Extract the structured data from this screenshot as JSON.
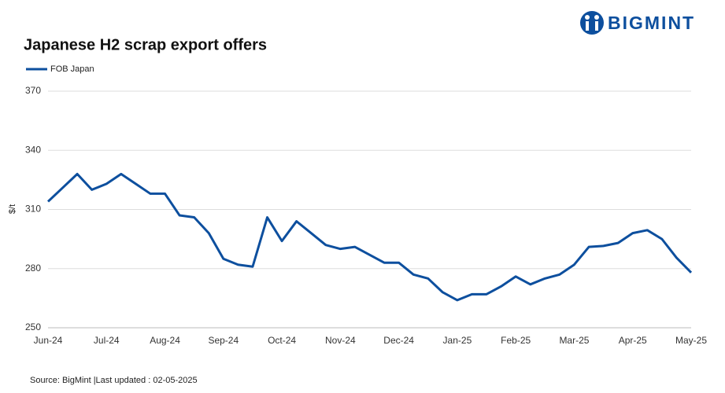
{
  "chart_data": {
    "type": "line",
    "title": "Japanese H2 scrap export offers",
    "brand": "BIGMINT",
    "ylabel": "$/t",
    "source": "Source: BigMint  |Last updated : 02-05-2025",
    "categories": [
      "Jun-24",
      null,
      null,
      null,
      "Jul-24",
      null,
      null,
      null,
      "Aug-24",
      null,
      null,
      null,
      "Sep-24",
      null,
      null,
      null,
      "Oct-24",
      null,
      null,
      null,
      "Nov-24",
      null,
      null,
      null,
      "Dec-24",
      null,
      null,
      null,
      "Jan-25",
      null,
      null,
      null,
      "Feb-25",
      null,
      null,
      null,
      "Mar-25",
      null,
      null,
      null,
      "Apr-25",
      null,
      null,
      null,
      "May-25"
    ],
    "series": [
      {
        "name": "FOB Japan",
        "color": "#0d4f9e",
        "values": [
          314,
          321,
          328,
          320,
          323,
          328,
          323,
          318,
          318,
          307,
          306,
          298,
          285,
          282,
          281,
          306,
          294,
          304,
          298,
          292,
          290,
          291,
          287,
          283,
          283,
          277,
          275,
          268,
          264,
          267,
          267,
          271,
          276,
          272,
          275,
          277,
          282,
          291,
          291.5,
          293,
          298,
          299.5,
          295,
          285.5,
          278
        ]
      }
    ],
    "ylim": [
      250,
      370
    ],
    "yticks": [
      250,
      280,
      310,
      340,
      370
    ],
    "grid": true
  }
}
